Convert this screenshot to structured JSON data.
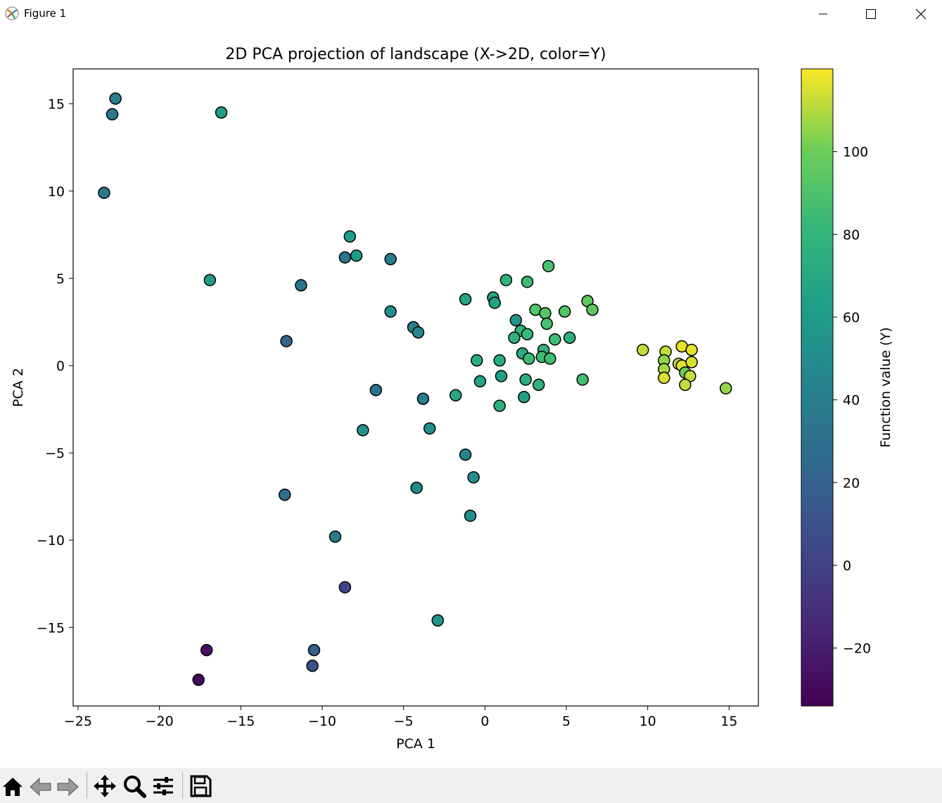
{
  "window": {
    "title": "Figure 1",
    "icon": "matplotlib-icon",
    "controls": [
      "minimize-icon",
      "maximize-icon",
      "close-icon"
    ]
  },
  "toolbar": {
    "buttons": [
      "home-icon",
      "back-icon",
      "forward-icon",
      "pan-icon",
      "zoom-icon",
      "configure-subplots-icon",
      "save-icon"
    ]
  },
  "chart_data": {
    "type": "scatter",
    "title": "2D PCA projection of landscape (X->2D, color=Y)",
    "xlabel": "PCA 1",
    "ylabel": "PCA 2",
    "xlim": [
      -25.3,
      16.8
    ],
    "ylim": [
      -19.5,
      17.0
    ],
    "xticks": [
      -25,
      -20,
      -15,
      -10,
      -5,
      0,
      5,
      10,
      15
    ],
    "yticks": [
      -15,
      -10,
      -5,
      0,
      5,
      10,
      15
    ],
    "xtick_labels": [
      "−25",
      "−20",
      "−15",
      "−10",
      "−5",
      "0",
      "5",
      "10",
      "15"
    ],
    "ytick_labels": [
      "−15",
      "−10",
      "−5",
      "0",
      "5",
      "10",
      "15"
    ],
    "grid": false,
    "colormap": "viridis",
    "colorbar": {
      "label": "Function value (Y)",
      "range": [
        -34,
        120
      ],
      "ticks": [
        -20,
        0,
        20,
        40,
        60,
        80,
        100
      ],
      "tick_labels": [
        "−20",
        "0",
        "20",
        "40",
        "60",
        "80",
        "100"
      ]
    },
    "marker_edge_color": "#000000",
    "points": [
      {
        "x": -22.7,
        "y": 15.3,
        "c": 42
      },
      {
        "x": -22.9,
        "y": 14.4,
        "c": 38
      },
      {
        "x": -16.2,
        "y": 14.5,
        "c": 60
      },
      {
        "x": -23.4,
        "y": 9.9,
        "c": 35
      },
      {
        "x": -8.3,
        "y": 7.4,
        "c": 62
      },
      {
        "x": -8.6,
        "y": 6.2,
        "c": 34
      },
      {
        "x": -7.9,
        "y": 6.3,
        "c": 60
      },
      {
        "x": -5.8,
        "y": 6.1,
        "c": 40
      },
      {
        "x": -16.9,
        "y": 4.9,
        "c": 58
      },
      {
        "x": -11.3,
        "y": 4.6,
        "c": 33
      },
      {
        "x": -5.8,
        "y": 3.1,
        "c": 52
      },
      {
        "x": -4.4,
        "y": 2.2,
        "c": 42
      },
      {
        "x": -4.1,
        "y": 1.9,
        "c": 45
      },
      {
        "x": -12.2,
        "y": 1.4,
        "c": 22
      },
      {
        "x": -1.2,
        "y": 3.8,
        "c": 68
      },
      {
        "x": 0.5,
        "y": 3.9,
        "c": 68
      },
      {
        "x": 0.6,
        "y": 3.6,
        "c": 66
      },
      {
        "x": 1.3,
        "y": 4.9,
        "c": 78
      },
      {
        "x": 2.6,
        "y": 4.8,
        "c": 85
      },
      {
        "x": 3.9,
        "y": 5.7,
        "c": 88
      },
      {
        "x": 3.1,
        "y": 3.2,
        "c": 92
      },
      {
        "x": 3.7,
        "y": 3.0,
        "c": 92
      },
      {
        "x": 4.9,
        "y": 3.1,
        "c": 92
      },
      {
        "x": 6.3,
        "y": 3.7,
        "c": 95
      },
      {
        "x": 6.6,
        "y": 3.2,
        "c": 95
      },
      {
        "x": 1.9,
        "y": 2.6,
        "c": 55
      },
      {
        "x": 3.8,
        "y": 2.4,
        "c": 88
      },
      {
        "x": 2.2,
        "y": 2.0,
        "c": 80
      },
      {
        "x": 2.6,
        "y": 1.8,
        "c": 82
      },
      {
        "x": 1.8,
        "y": 1.6,
        "c": 78
      },
      {
        "x": 4.3,
        "y": 1.5,
        "c": 85
      },
      {
        "x": 5.2,
        "y": 1.6,
        "c": 75
      },
      {
        "x": 3.6,
        "y": 0.9,
        "c": 78
      },
      {
        "x": 2.3,
        "y": 0.7,
        "c": 72
      },
      {
        "x": 2.7,
        "y": 0.4,
        "c": 85
      },
      {
        "x": 3.5,
        "y": 0.5,
        "c": 85
      },
      {
        "x": 4.0,
        "y": 0.4,
        "c": 85
      },
      {
        "x": -0.5,
        "y": 0.3,
        "c": 73
      },
      {
        "x": 0.9,
        "y": 0.3,
        "c": 73
      },
      {
        "x": 1.0,
        "y": -0.6,
        "c": 62
      },
      {
        "x": -0.3,
        "y": -0.9,
        "c": 65
      },
      {
        "x": 2.5,
        "y": -0.8,
        "c": 74
      },
      {
        "x": 3.3,
        "y": -1.1,
        "c": 78
      },
      {
        "x": 6.0,
        "y": -0.8,
        "c": 86
      },
      {
        "x": -1.8,
        "y": -1.7,
        "c": 70
      },
      {
        "x": 2.4,
        "y": -1.8,
        "c": 64
      },
      {
        "x": 0.9,
        "y": -2.3,
        "c": 75
      },
      {
        "x": -6.7,
        "y": -1.4,
        "c": 30
      },
      {
        "x": -3.8,
        "y": -1.9,
        "c": 40
      },
      {
        "x": -7.5,
        "y": -3.7,
        "c": 55
      },
      {
        "x": -3.4,
        "y": -3.6,
        "c": 50
      },
      {
        "x": -1.2,
        "y": -5.1,
        "c": 44
      },
      {
        "x": -0.7,
        "y": -6.4,
        "c": 52
      },
      {
        "x": -4.2,
        "y": -7.0,
        "c": 48
      },
      {
        "x": -12.3,
        "y": -7.4,
        "c": 28
      },
      {
        "x": -0.9,
        "y": -8.6,
        "c": 52
      },
      {
        "x": -9.2,
        "y": -9.8,
        "c": 38
      },
      {
        "x": -8.6,
        "y": -12.7,
        "c": 3
      },
      {
        "x": -2.9,
        "y": -14.6,
        "c": 56
      },
      {
        "x": -17.1,
        "y": -16.3,
        "c": -26
      },
      {
        "x": -10.5,
        "y": -16.3,
        "c": 18
      },
      {
        "x": -10.6,
        "y": -17.2,
        "c": 10
      },
      {
        "x": -17.6,
        "y": -18.0,
        "c": -32
      },
      {
        "x": 9.7,
        "y": 0.9,
        "c": 112
      },
      {
        "x": 11.1,
        "y": 0.8,
        "c": 112
      },
      {
        "x": 11.0,
        "y": 0.3,
        "c": 105
      },
      {
        "x": 11.0,
        "y": -0.2,
        "c": 108
      },
      {
        "x": 11.0,
        "y": -0.7,
        "c": 115
      },
      {
        "x": 12.1,
        "y": 1.1,
        "c": 117
      },
      {
        "x": 12.7,
        "y": 0.9,
        "c": 117
      },
      {
        "x": 11.9,
        "y": 0.1,
        "c": 112
      },
      {
        "x": 12.1,
        "y": 0.0,
        "c": 117
      },
      {
        "x": 12.7,
        "y": 0.2,
        "c": 115
      },
      {
        "x": 12.3,
        "y": -0.4,
        "c": 100
      },
      {
        "x": 12.6,
        "y": -0.6,
        "c": 112
      },
      {
        "x": 12.3,
        "y": -1.1,
        "c": 112
      },
      {
        "x": 14.8,
        "y": -1.3,
        "c": 106
      }
    ]
  }
}
